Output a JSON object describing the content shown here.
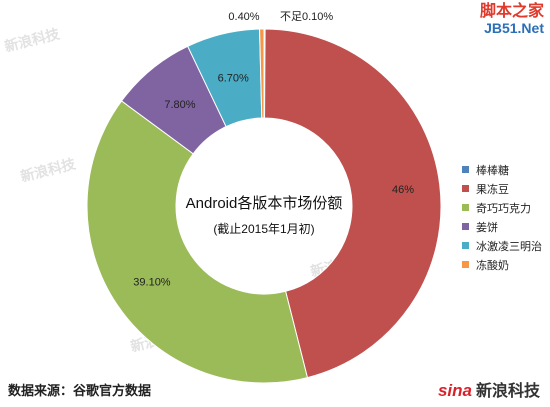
{
  "chart_data": {
    "type": "donut",
    "title": "Android各版本市场份额",
    "subtitle": "(截止2015年1月初)",
    "series": [
      {
        "name": "棒棒糖",
        "value": 0.1,
        "label": "不足0.10%",
        "color": "#4f81bd"
      },
      {
        "name": "果冻豆",
        "value": 46.0,
        "label": "46%",
        "color": "#c0504d"
      },
      {
        "name": "奇巧巧克力",
        "value": 39.1,
        "label": "39.10%",
        "color": "#9bbb59"
      },
      {
        "name": "姜饼",
        "value": 7.8,
        "label": "7.80%",
        "color": "#8064a2"
      },
      {
        "name": "冰激凌三明治",
        "value": 6.7,
        "label": "6.70%",
        "color": "#4bacc6"
      },
      {
        "name": "冻酸奶",
        "value": 0.4,
        "label": "0.40%",
        "color": "#f79646"
      }
    ],
    "legend_position": "right"
  },
  "watermarks": {
    "sina_cn": "新浪科技"
  },
  "source": "数据来源：谷歌官方数据",
  "brand": {
    "sina_mark": "sina",
    "sina_name": "新浪科技"
  },
  "site_logo": {
    "line1": "脚本之家",
    "line2": "JB51.Net"
  }
}
